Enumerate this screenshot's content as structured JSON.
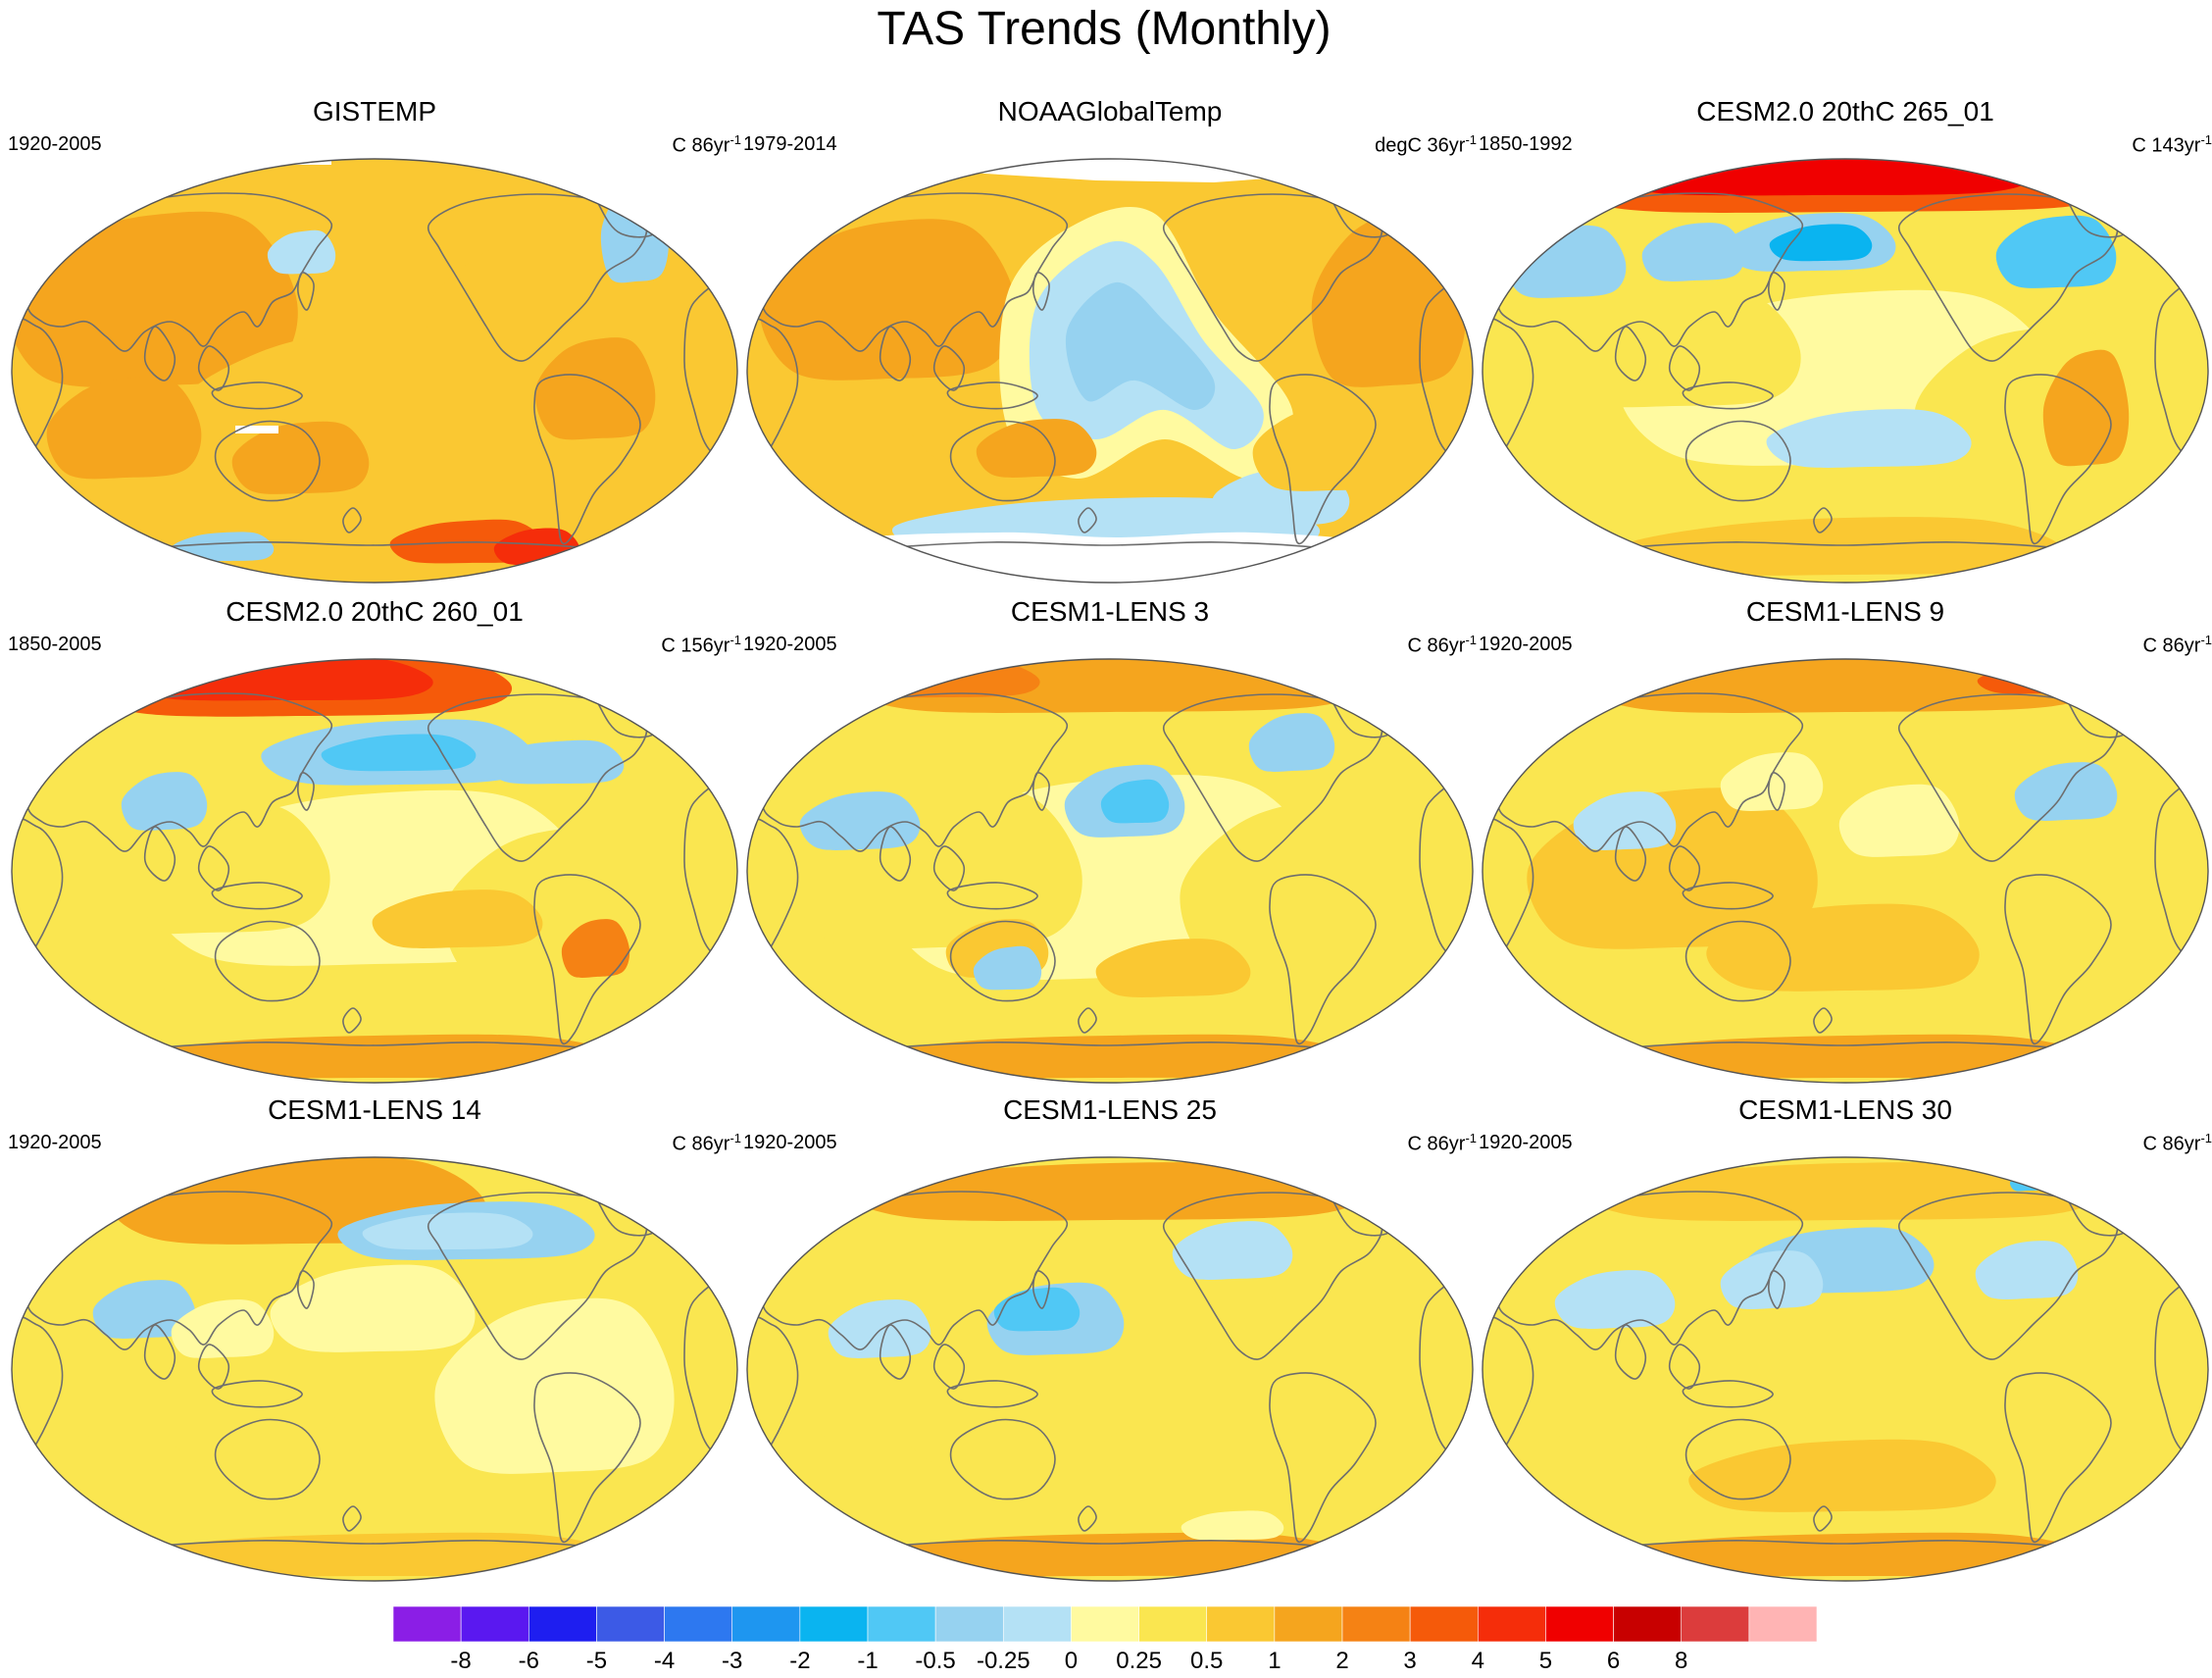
{
  "title": "TAS Trends (Monthly)",
  "palette": {
    "bins": [
      "#8b1ee6",
      "#5a18f0",
      "#1e1ef0",
      "#3c5ae6",
      "#2d78f0",
      "#1e96f0",
      "#0ab4f0",
      "#50c8f5",
      "#96d2f0",
      "#b4e1f5",
      "#fffaa0",
      "#fae650",
      "#fac832",
      "#f5a51e",
      "#f58214",
      "#f55a0a",
      "#f52d0a",
      "#f00000",
      "#c80000",
      "#dc3c3c",
      "#ffb4b4"
    ],
    "coast": "#6e6e6e",
    "missing": "#ffffff"
  },
  "colorbar": {
    "labels": [
      "-8",
      "-6",
      "-5",
      "-4",
      "-3",
      "-2",
      "-1",
      "-0.5",
      "-0.25",
      "0",
      "0.25",
      "0.5",
      "1",
      "2",
      "3",
      "4",
      "5",
      "6",
      "8"
    ]
  },
  "panels": [
    {
      "title": "GISTEMP",
      "period": "1920-2005",
      "units": "C 86yr",
      "units_exp": "-1",
      "style": "gistemp"
    },
    {
      "title": "NOAAGlobalTemp",
      "period": "1979-2014",
      "units": "degC 36yr",
      "units_exp": "-1",
      "style": "noaa"
    },
    {
      "title": "CESM2.0 20thC 265_01",
      "period": "1850-1992",
      "units": "C 143yr",
      "units_exp": "-1",
      "style": "cesm2a"
    },
    {
      "title": "CESM2.0 20thC 260_01",
      "period": "1850-2005",
      "units": "C 156yr",
      "units_exp": "-1",
      "style": "cesm2b"
    },
    {
      "title": "CESM1-LENS 3",
      "period": "1920-2005",
      "units": "C 86yr",
      "units_exp": "-1",
      "style": "lens3"
    },
    {
      "title": "CESM1-LENS 9",
      "period": "1920-2005",
      "units": "C 86yr",
      "units_exp": "-1",
      "style": "lens9"
    },
    {
      "title": "CESM1-LENS 14",
      "period": "1920-2005",
      "units": "C 86yr",
      "units_exp": "-1",
      "style": "lens14"
    },
    {
      "title": "CESM1-LENS 25",
      "period": "1920-2005",
      "units": "C 86yr",
      "units_exp": "-1",
      "style": "lens25"
    },
    {
      "title": "CESM1-LENS 30",
      "period": "1920-2005",
      "units": "C 86yr",
      "units_exp": "-1",
      "style": "lens30"
    }
  ]
}
